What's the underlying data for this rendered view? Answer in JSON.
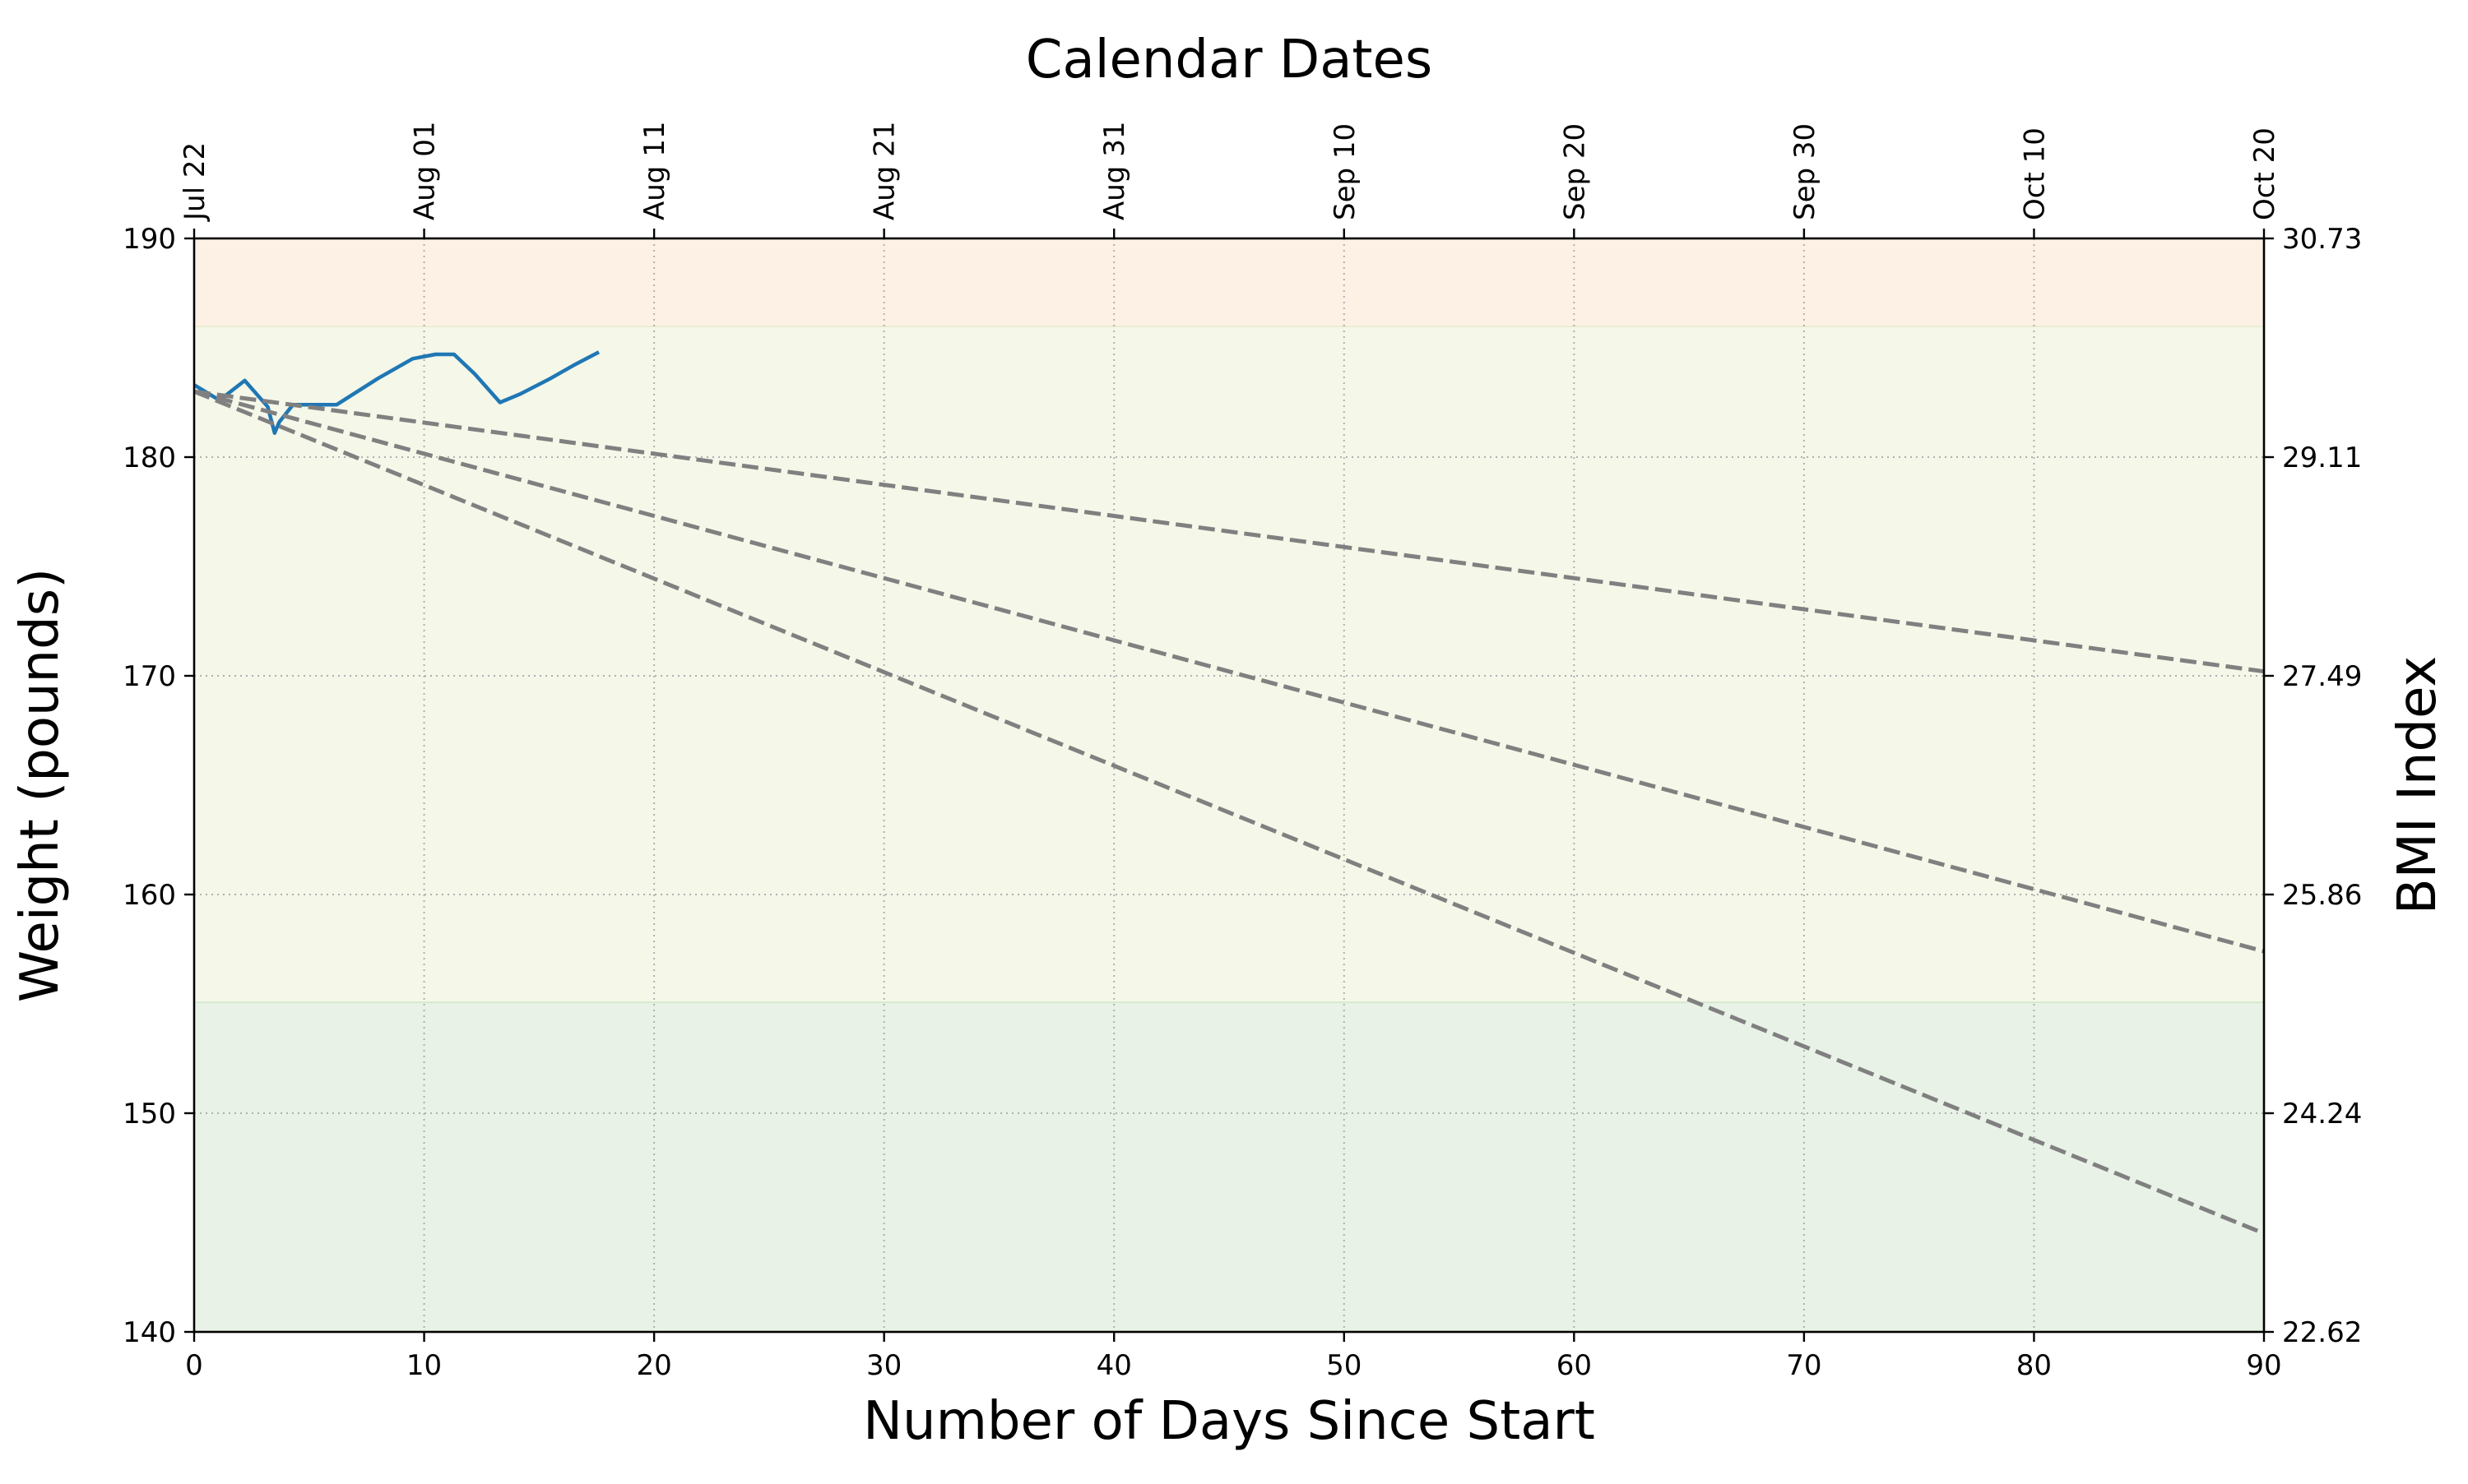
{
  "chart_data": {
    "type": "line",
    "title": "Calendar Dates",
    "xlabel": "Number of Days Since Start",
    "ylabel": "Weight (pounds)",
    "y2label": "BMI Index",
    "xlim": [
      0,
      90
    ],
    "ylim": [
      140,
      190
    ],
    "grid": true,
    "x_ticks": [
      0,
      10,
      20,
      30,
      40,
      50,
      60,
      70,
      80,
      90
    ],
    "y_ticks": [
      140,
      150,
      160,
      170,
      180,
      190
    ],
    "top_ticks": [
      {
        "x": 0,
        "label": "Jul 22"
      },
      {
        "x": 10,
        "label": "Aug 01"
      },
      {
        "x": 20,
        "label": "Aug 11"
      },
      {
        "x": 30,
        "label": "Aug 21"
      },
      {
        "x": 40,
        "label": "Aug 31"
      },
      {
        "x": 50,
        "label": "Sep 10"
      },
      {
        "x": 60,
        "label": "Sep 20"
      },
      {
        "x": 70,
        "label": "Sep 30"
      },
      {
        "x": 80,
        "label": "Oct 10"
      },
      {
        "x": 90,
        "label": "Oct 20"
      }
    ],
    "right_ticks": [
      {
        "y": 140,
        "label": "22.62"
      },
      {
        "y": 150,
        "label": "24.24"
      },
      {
        "y": 160,
        "label": "25.86"
      },
      {
        "y": 170,
        "label": "27.49"
      },
      {
        "y": 180,
        "label": "29.11"
      },
      {
        "y": 190,
        "label": "30.73"
      }
    ],
    "bands": [
      {
        "y0": 140,
        "y1": 155.1,
        "color": "#e8f2e6",
        "edge": "#cfe6c8"
      },
      {
        "y0": 155.1,
        "y1": 186.0,
        "color": "#f5f7e9",
        "edge": "#e4ecc9"
      },
      {
        "y0": 186.0,
        "y1": 190,
        "color": "#fdf1e5",
        "edge": "#f7dfc3"
      }
    ],
    "series": [
      {
        "color": "#1f77b4",
        "style": "solid",
        "x": [
          0,
          1.1,
          2.2,
          3.2,
          3.5,
          3.7,
          4.3,
          5,
          6.2,
          8,
          9.5,
          10.5,
          11.3,
          12.2,
          13.3,
          14.2,
          15.5,
          16.5,
          17.6
        ],
        "y": [
          183.3,
          182.6,
          183.5,
          182.3,
          181.1,
          181.6,
          182.4,
          182.4,
          182.4,
          183.6,
          184.5,
          184.7,
          184.7,
          183.8,
          182.5,
          182.9,
          183.6,
          184.2,
          184.8
        ]
      },
      {
        "color": "#808080",
        "style": "dashed",
        "x": [
          0,
          90
        ],
        "y": [
          183.0,
          170.2
        ]
      },
      {
        "color": "#808080",
        "style": "dashed",
        "x": [
          0,
          90
        ],
        "y": [
          183.0,
          157.4
        ]
      },
      {
        "color": "#808080",
        "style": "dashed",
        "x": [
          0,
          90
        ],
        "y": [
          183.0,
          144.5
        ]
      }
    ]
  }
}
